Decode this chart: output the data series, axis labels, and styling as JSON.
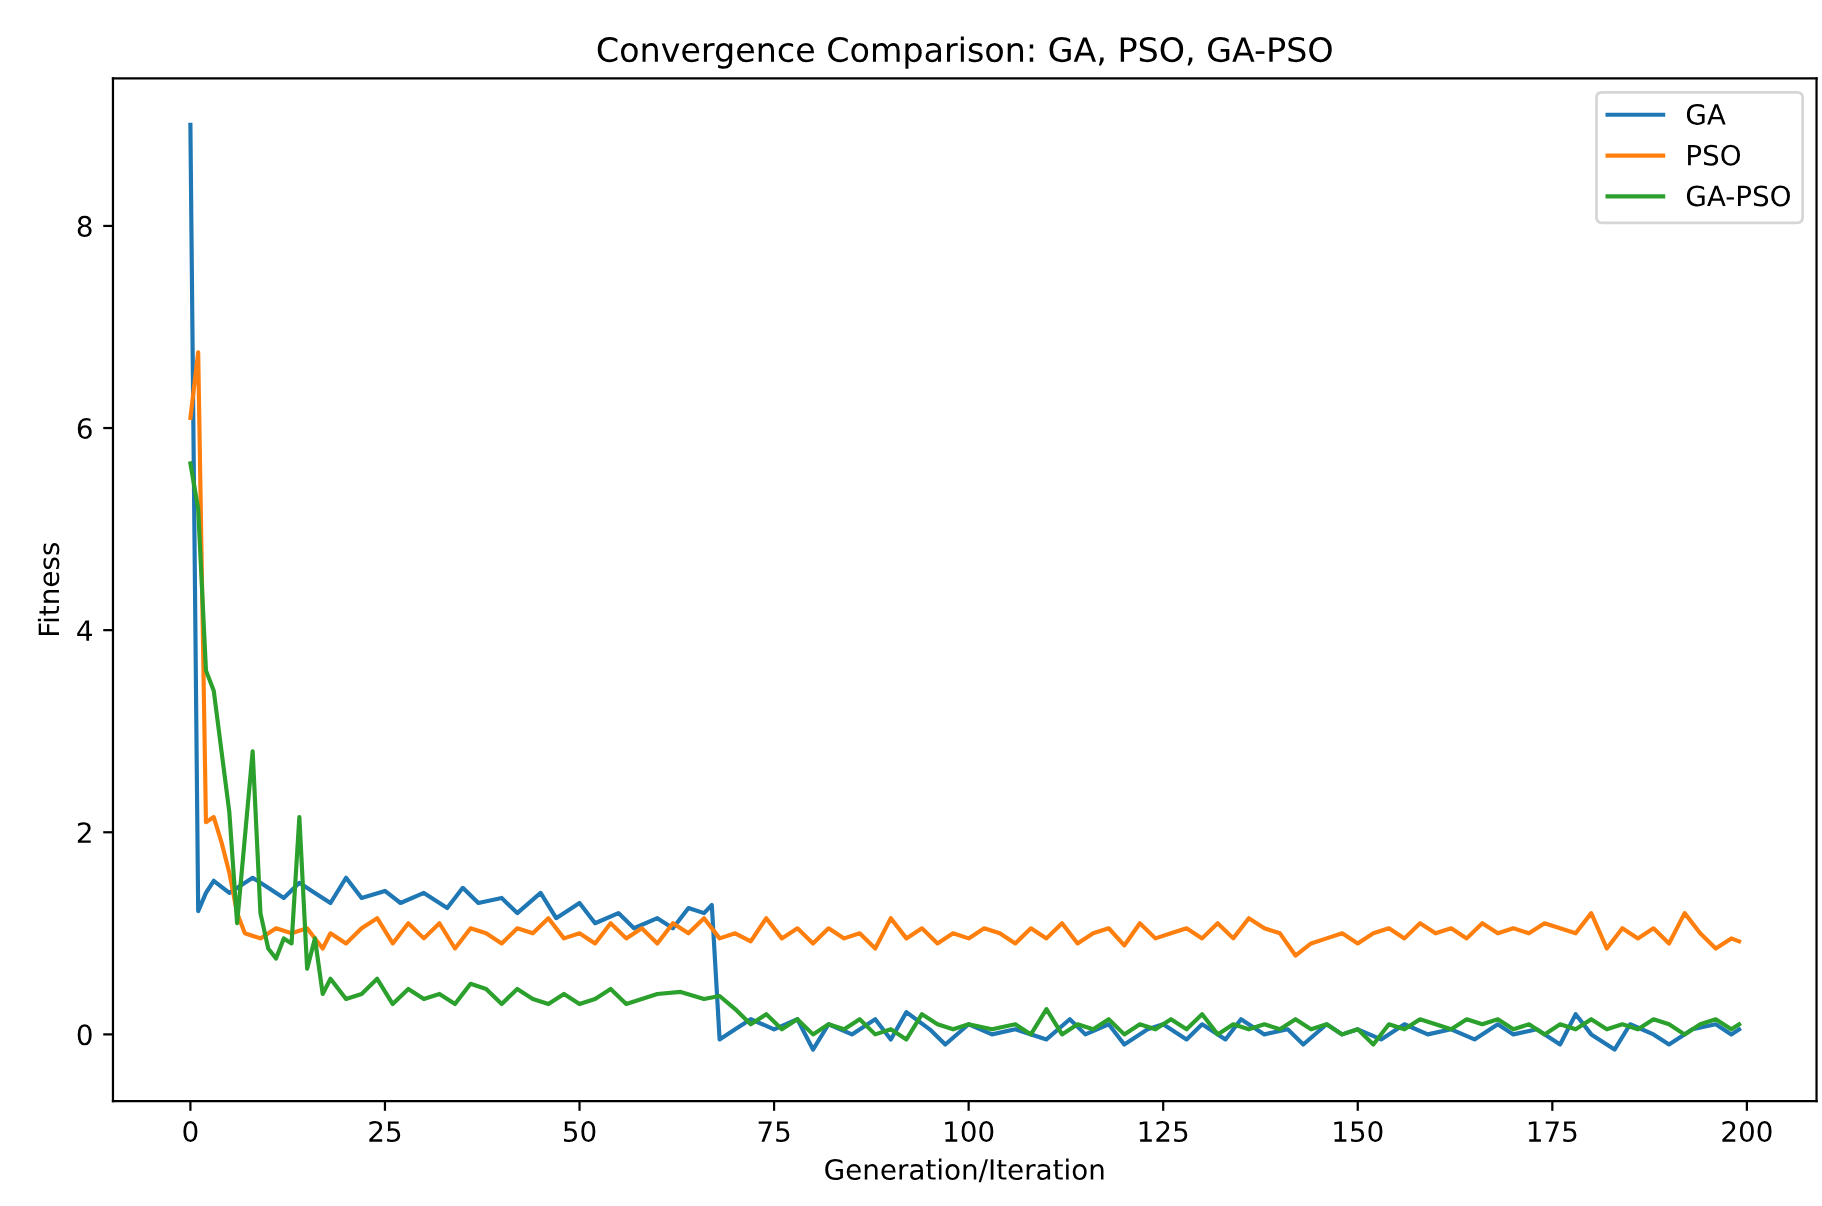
{
  "chart_data": {
    "type": "line",
    "title": "Convergence Comparison: GA, PSO, GA-PSO",
    "xlabel": "Generation/Iteration",
    "ylabel": "Fitness",
    "xlim": [
      -9.95,
      208.95
    ],
    "xticks": [
      0,
      25,
      50,
      75,
      100,
      125,
      150,
      175,
      200
    ],
    "ylim": [
      -0.66,
      9.46
    ],
    "yticks": [
      0,
      2,
      4,
      6,
      8
    ],
    "grid": false,
    "legend": "top right",
    "marker": "none",
    "line_style": "solid",
    "series": [
      {
        "name": "GA",
        "color": "#1f77b4",
        "x": [
          0,
          1,
          2,
          3,
          5,
          8,
          10,
          12,
          14,
          16,
          18,
          20,
          22,
          25,
          27,
          30,
          33,
          35,
          37,
          40,
          42,
          45,
          47,
          50,
          52,
          55,
          57,
          60,
          62,
          64,
          66,
          67,
          68,
          70,
          72,
          75,
          78,
          80,
          82,
          85,
          88,
          90,
          92,
          95,
          97,
          100,
          103,
          106,
          110,
          113,
          115,
          118,
          120,
          123,
          125,
          128,
          130,
          133,
          135,
          138,
          141,
          143,
          146,
          148,
          150,
          153,
          156,
          159,
          162,
          165,
          168,
          170,
          173,
          176,
          178,
          180,
          183,
          185,
          188,
          190,
          193,
          196,
          198,
          199
        ],
        "values": [
          9.0,
          1.22,
          1.4,
          1.52,
          1.4,
          1.55,
          1.45,
          1.35,
          1.5,
          1.4,
          1.3,
          1.55,
          1.35,
          1.42,
          1.3,
          1.4,
          1.25,
          1.45,
          1.3,
          1.35,
          1.2,
          1.4,
          1.15,
          1.3,
          1.1,
          1.2,
          1.05,
          1.15,
          1.05,
          1.25,
          1.2,
          1.28,
          -0.05,
          0.05,
          0.15,
          0.05,
          0.15,
          -0.15,
          0.1,
          0.0,
          0.15,
          -0.05,
          0.22,
          0.05,
          -0.1,
          0.1,
          0.0,
          0.05,
          -0.05,
          0.15,
          0.0,
          0.1,
          -0.1,
          0.05,
          0.1,
          -0.05,
          0.1,
          -0.05,
          0.15,
          0.0,
          0.05,
          -0.1,
          0.1,
          0.0,
          0.05,
          -0.05,
          0.1,
          0.0,
          0.05,
          -0.05,
          0.1,
          0.0,
          0.05,
          -0.1,
          0.2,
          0.0,
          -0.15,
          0.1,
          0.0,
          -0.1,
          0.05,
          0.1,
          0.0,
          0.05
        ]
      },
      {
        "name": "PSO",
        "color": "#ff7f0e",
        "x": [
          0,
          1,
          2,
          3,
          4,
          5,
          6,
          7,
          9,
          11,
          13,
          15,
          17,
          18,
          20,
          22,
          24,
          26,
          28,
          30,
          32,
          34,
          36,
          38,
          40,
          42,
          44,
          46,
          48,
          50,
          52,
          54,
          56,
          58,
          60,
          62,
          64,
          66,
          68,
          70,
          72,
          74,
          76,
          78,
          80,
          82,
          84,
          86,
          88,
          90,
          92,
          94,
          96,
          98,
          100,
          102,
          104,
          106,
          108,
          110,
          112,
          114,
          116,
          118,
          120,
          122,
          124,
          126,
          128,
          130,
          132,
          134,
          136,
          138,
          140,
          142,
          144,
          146,
          148,
          150,
          152,
          154,
          156,
          158,
          160,
          162,
          164,
          166,
          168,
          170,
          172,
          174,
          176,
          178,
          180,
          182,
          184,
          186,
          188,
          190,
          192,
          194,
          196,
          198,
          199
        ],
        "values": [
          6.1,
          6.75,
          2.1,
          2.15,
          1.9,
          1.6,
          1.2,
          1.0,
          0.95,
          1.05,
          1.0,
          1.05,
          0.85,
          1.0,
          0.9,
          1.05,
          1.15,
          0.9,
          1.1,
          0.95,
          1.1,
          0.85,
          1.05,
          1.0,
          0.9,
          1.05,
          1.0,
          1.15,
          0.95,
          1.0,
          0.9,
          1.1,
          0.95,
          1.05,
          0.9,
          1.1,
          1.0,
          1.15,
          0.95,
          1.0,
          0.92,
          1.15,
          0.95,
          1.05,
          0.9,
          1.05,
          0.95,
          1.0,
          0.85,
          1.15,
          0.95,
          1.05,
          0.9,
          1.0,
          0.95,
          1.05,
          1.0,
          0.9,
          1.05,
          0.95,
          1.1,
          0.9,
          1.0,
          1.05,
          0.88,
          1.1,
          0.95,
          1.0,
          1.05,
          0.95,
          1.1,
          0.95,
          1.15,
          1.05,
          1.0,
          0.78,
          0.9,
          0.95,
          1.0,
          0.9,
          1.0,
          1.05,
          0.95,
          1.1,
          1.0,
          1.05,
          0.95,
          1.1,
          1.0,
          1.05,
          1.0,
          1.1,
          1.05,
          1.0,
          1.2,
          0.85,
          1.05,
          0.95,
          1.05,
          0.9,
          1.2,
          1.0,
          0.85,
          0.95,
          0.92
        ]
      },
      {
        "name": "GA-PSO",
        "color": "#2ca02c",
        "x": [
          0,
          1,
          2,
          3,
          4,
          5,
          6,
          8,
          9,
          10,
          11,
          12,
          13,
          14,
          15,
          16,
          17,
          18,
          20,
          22,
          24,
          26,
          28,
          30,
          32,
          34,
          36,
          38,
          40,
          42,
          44,
          46,
          48,
          50,
          52,
          54,
          56,
          58,
          60,
          63,
          66,
          68,
          70,
          72,
          74,
          76,
          78,
          80,
          82,
          84,
          86,
          88,
          90,
          92,
          94,
          96,
          98,
          100,
          103,
          106,
          108,
          110,
          112,
          114,
          116,
          118,
          120,
          122,
          124,
          126,
          128,
          130,
          132,
          134,
          136,
          138,
          140,
          142,
          144,
          146,
          148,
          150,
          152,
          154,
          156,
          158,
          160,
          162,
          164,
          166,
          168,
          170,
          172,
          174,
          176,
          178,
          180,
          182,
          184,
          186,
          188,
          190,
          192,
          194,
          196,
          198,
          199
        ],
        "values": [
          5.65,
          5.2,
          3.6,
          3.4,
          2.8,
          2.2,
          1.1,
          2.8,
          1.2,
          0.85,
          0.75,
          0.95,
          0.9,
          2.15,
          0.65,
          0.95,
          0.4,
          0.55,
          0.35,
          0.4,
          0.55,
          0.3,
          0.45,
          0.35,
          0.4,
          0.3,
          0.5,
          0.45,
          0.3,
          0.45,
          0.35,
          0.3,
          0.4,
          0.3,
          0.35,
          0.45,
          0.3,
          0.35,
          0.4,
          0.42,
          0.35,
          0.38,
          0.25,
          0.1,
          0.2,
          0.05,
          0.15,
          0.0,
          0.1,
          0.05,
          0.15,
          0.0,
          0.05,
          -0.05,
          0.2,
          0.1,
          0.05,
          0.1,
          0.05,
          0.1,
          0.0,
          0.25,
          0.0,
          0.1,
          0.05,
          0.15,
          0.0,
          0.1,
          0.05,
          0.15,
          0.05,
          0.2,
          0.0,
          0.1,
          0.05,
          0.1,
          0.05,
          0.15,
          0.05,
          0.1,
          0.0,
          0.05,
          -0.1,
          0.1,
          0.05,
          0.15,
          0.1,
          0.05,
          0.15,
          0.1,
          0.15,
          0.05,
          0.1,
          0.0,
          0.1,
          0.05,
          0.15,
          0.05,
          0.1,
          0.05,
          0.15,
          0.1,
          0.0,
          0.1,
          0.15,
          0.05,
          0.1
        ]
      }
    ]
  }
}
